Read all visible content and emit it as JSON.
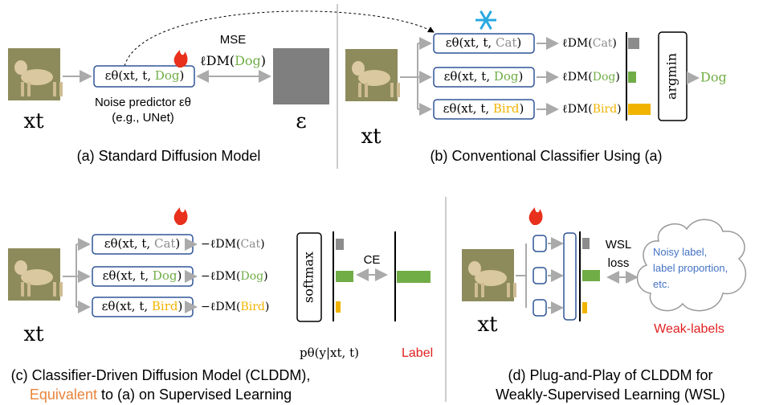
{
  "panel_a": {
    "caption": "(a) Standard Diffusion Model",
    "input": "xt",
    "predictor": {
      "prefix": "εθ(xt, t, ",
      "class": "Dog",
      "suffix": ")",
      "color": "#70ad47"
    },
    "predictor_note": [
      "Noise predictor εθ",
      "(e.g., UNet)"
    ],
    "loss": "MSE",
    "loss_term": {
      "prefix": "ℓDM(",
      "class": "Dog",
      "suffix": ")"
    },
    "target": "ε"
  },
  "panel_b": {
    "caption": "(b) Conventional Classifier Using (a)",
    "input": "xt",
    "predictor_prefix": "εθ(xt, t, ",
    "close": ")",
    "loss_prefix": "ℓDM(",
    "rows": [
      {
        "class": "Cat",
        "color": "#8c8c8c"
      },
      {
        "class": "Dog",
        "color": "#70ad47"
      },
      {
        "class": "Bird",
        "color": "#f0b400"
      }
    ],
    "selector": "argmin",
    "output": "Dog",
    "output_color": "#70ad47"
  },
  "panel_c": {
    "caption": [
      "(c) Classifier-Driven Diffusion Model (CLDDM),",
      "Equivalent",
      " to (a) on Supervised Learning"
    ],
    "input": "xt",
    "predictor_prefix": "εθ(xt, t, ",
    "close": ")",
    "loss_prefix": "−ℓDM(",
    "rows": [
      {
        "class": "Cat",
        "color": "#8c8c8c"
      },
      {
        "class": "Dog",
        "color": "#70ad47"
      },
      {
        "class": "Bird",
        "color": "#f0b400"
      }
    ],
    "selector": "softmax",
    "loss": "CE",
    "prediction": "pθ(y|xt, t)",
    "label": "Label"
  },
  "panel_d": {
    "caption": [
      "(d) Plug-and-Play of CLDDM for",
      "Weakly-Supervised Learning (WSL)"
    ],
    "input": "xt",
    "loss": [
      "WSL",
      "loss"
    ],
    "cloud": [
      "Noisy label,",
      "label proportion,",
      "etc."
    ],
    "weak_labels": "Weak-labels"
  }
}
